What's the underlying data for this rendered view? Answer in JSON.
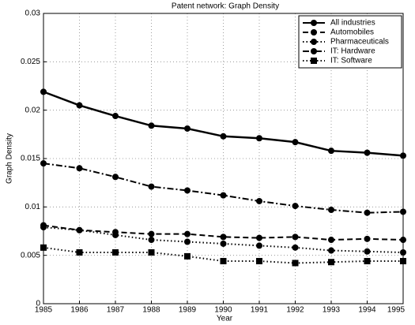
{
  "chart_data": {
    "type": "line",
    "title": "Patent network: Graph Density",
    "xlabel": "Year",
    "ylabel": "Graph Density",
    "x": [
      1985,
      1986,
      1987,
      1988,
      1989,
      1990,
      1991,
      1992,
      1993,
      1994,
      1995
    ],
    "series": [
      {
        "name": "All industries",
        "color": "#000000",
        "dash": "solid",
        "marker": "circle",
        "values": [
          0.0219,
          0.0205,
          0.0194,
          0.0184,
          0.0181,
          0.0173,
          0.0171,
          0.0167,
          0.0158,
          0.0156,
          0.0153
        ]
      },
      {
        "name": "Automobiles",
        "color": "#000000",
        "dash": "dashed",
        "marker": "circle",
        "values": [
          0.0081,
          0.0076,
          0.0074,
          0.0072,
          0.0072,
          0.0069,
          0.0068,
          0.0069,
          0.0066,
          0.0067,
          0.0066
        ]
      },
      {
        "name": "Pharmaceuticals",
        "color": "#000000",
        "dash": "dotted",
        "marker": "circle",
        "values": [
          0.0079,
          0.0076,
          0.0071,
          0.0066,
          0.0064,
          0.0062,
          0.006,
          0.0058,
          0.0055,
          0.0054,
          0.0053
        ]
      },
      {
        "name": "IT: Hardware",
        "color": "#000000",
        "dash": "dashdot",
        "marker": "circle",
        "values": [
          0.0145,
          0.014,
          0.0131,
          0.0121,
          0.0117,
          0.0112,
          0.0106,
          0.0101,
          0.0097,
          0.0094,
          0.0095
        ]
      },
      {
        "name": "IT: Software",
        "color": "#000000",
        "dash": "dotted",
        "marker": "square",
        "values": [
          0.0058,
          0.0053,
          0.0053,
          0.0053,
          0.0049,
          0.0044,
          0.0044,
          0.0042,
          0.0043,
          0.0044,
          0.0044
        ]
      }
    ],
    "xlim": [
      1985,
      1995
    ],
    "ylim": [
      0,
      0.03
    ],
    "xticks": [
      1985,
      1986,
      1987,
      1988,
      1989,
      1990,
      1991,
      1992,
      1993,
      1994,
      1995
    ],
    "yticks": [
      0,
      0.005,
      0.01,
      0.015,
      0.02,
      0.025,
      0.03
    ],
    "grid": true,
    "legend": "upper right"
  }
}
